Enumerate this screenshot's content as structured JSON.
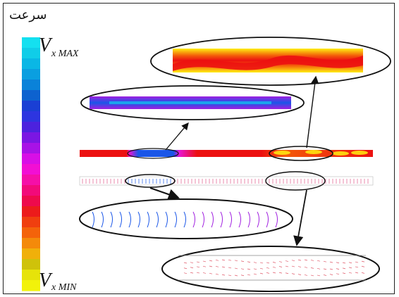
{
  "legend": {
    "title": "سرعت",
    "max_main": "V",
    "max_sub": "x MAX",
    "min_main": "V",
    "min_sub": "x MIN",
    "colors": [
      "#14e0f0",
      "#10cde8",
      "#0ab7e5",
      "#0a9fe0",
      "#0a82d9",
      "#0d62cf",
      "#1a3fd4",
      "#2d35e0",
      "#4c22de",
      "#7b16e3",
      "#a812e6",
      "#d80fe6",
      "#f20fd4",
      "#f50fa8",
      "#f20a7a",
      "#ee0a4c",
      "#ec1b1b",
      "#f03f0f",
      "#f4630a",
      "#f48a0a",
      "#f0b00a",
      "#cfc20a",
      "#e6e30a",
      "#f2f20a"
    ]
  },
  "colors": {
    "red": "#ec1111",
    "orange": "#f35a0a",
    "yellow": "#ffef10",
    "blue": "#1a56e8",
    "cyan": "#18c6f0",
    "purple": "#a01fe0",
    "magenta": "#e814d4"
  }
}
